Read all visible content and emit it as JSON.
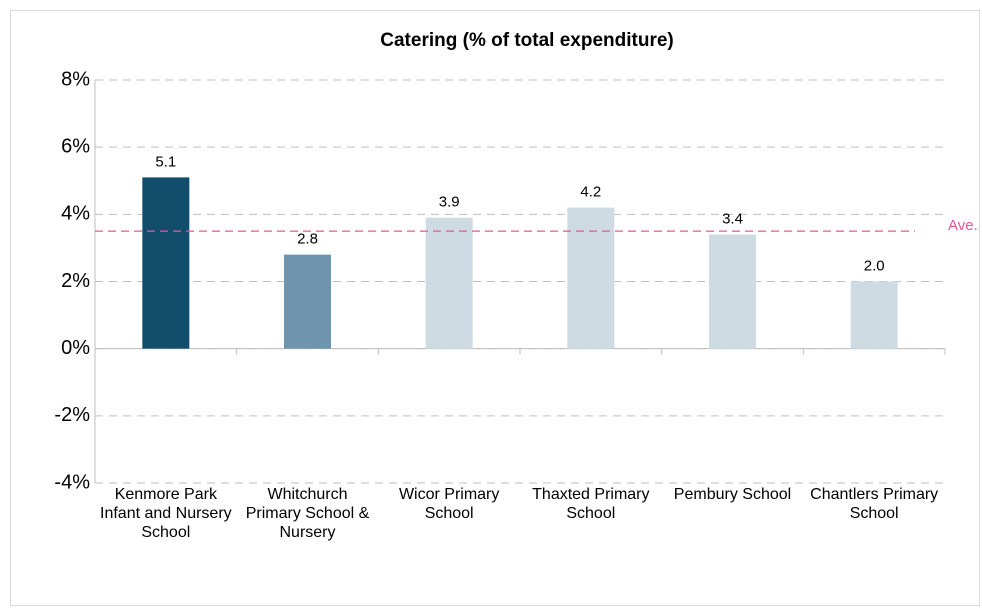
{
  "chart_data": {
    "type": "bar",
    "title": "Catering (% of total expenditure)",
    "categories": [
      "Kenmore Park Infant and Nursery School",
      "Whitchurch Primary School & Nursery",
      "Wicor Primary School",
      "Thaxted Primary School",
      "Pembury School",
      "Chantlers Primary School"
    ],
    "values": [
      5.1,
      2.8,
      3.9,
      4.2,
      3.4,
      2.0
    ],
    "value_labels": [
      "5.1",
      "2.8",
      "3.9",
      "4.2",
      "3.4",
      "2.0"
    ],
    "colors": [
      "#124e6b",
      "#6f94ad",
      "#cfdbe3",
      "#cfdbe3",
      "#cfdbe3",
      "#cfdbe3"
    ],
    "ylim": [
      -4,
      8
    ],
    "yticks": [
      {
        "value": -4,
        "label": "-4%"
      },
      {
        "value": -2,
        "label": "-2%"
      },
      {
        "value": 0,
        "label": "0%"
      },
      {
        "value": 2,
        "label": "2%"
      },
      {
        "value": 4,
        "label": "4%"
      },
      {
        "value": 6,
        "label": "6%"
      },
      {
        "value": 8,
        "label": "8%"
      }
    ],
    "grid": true,
    "average": {
      "value": 3.5,
      "label": "Ave.",
      "color": "#e8559b"
    }
  }
}
